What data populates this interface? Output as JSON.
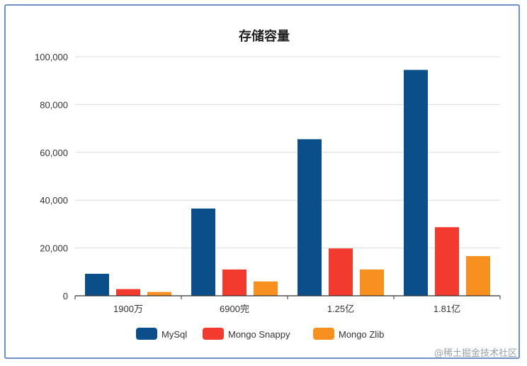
{
  "watermark": "@稀土掘金技术社区",
  "chart_data": {
    "type": "bar",
    "title": "存储容量",
    "categories": [
      "1900万",
      "6900完",
      "1.25亿",
      "1.81亿"
    ],
    "series": [
      {
        "name": "MySql",
        "color": "#0b4f8a",
        "values": [
          9200,
          36500,
          65500,
          94500
        ]
      },
      {
        "name": "Mongo Snappy",
        "color": "#f23a2f",
        "values": [
          2800,
          11000,
          19800,
          28700
        ]
      },
      {
        "name": "Mongo Zlib",
        "color": "#f7901e",
        "values": [
          1600,
          6000,
          11000,
          16600
        ]
      }
    ],
    "ylim": [
      0,
      100000
    ],
    "yticks": [
      "0",
      "20,000",
      "40,000",
      "60,000",
      "80,000",
      "100,000"
    ],
    "legend": "bottom",
    "grid": true
  }
}
